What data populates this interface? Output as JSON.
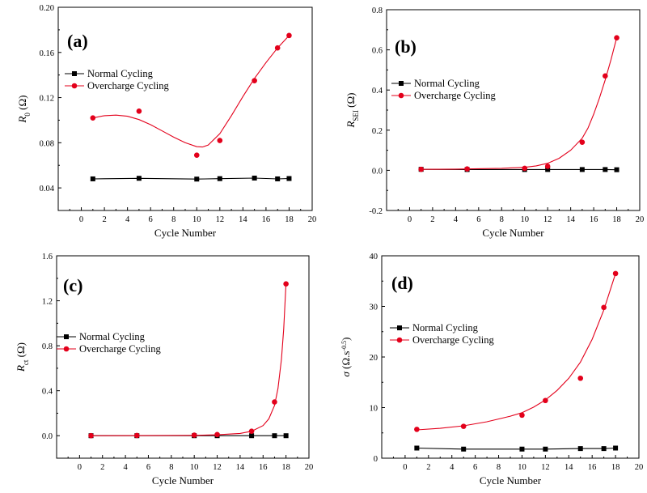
{
  "chart_data": [
    {
      "type": "scatter",
      "panel_label": "(a)",
      "ylabel_main": "R",
      "ylabel_sub": "0",
      "ylabel_unit": " (Ω)",
      "xlabel": "Cycle Number",
      "xlim": [
        -2,
        20
      ],
      "ylim": [
        0.02,
        0.2
      ],
      "xticks": [
        "0",
        "2",
        "4",
        "6",
        "8",
        "10",
        "12",
        "14",
        "16",
        "18",
        "20"
      ],
      "yticks": [
        "0.04",
        "0.08",
        "0.12",
        "0.16",
        "0.20"
      ],
      "legend_position": "upper-left",
      "series": [
        {
          "name": "Normal Cycling",
          "color": "#000000",
          "marker": "square",
          "x": [
            1,
            5,
            10,
            12,
            15,
            17,
            18
          ],
          "y": [
            0.048,
            0.0485,
            0.0478,
            0.0482,
            0.0487,
            0.048,
            0.0483
          ]
        },
        {
          "name": "Overcharge Cycling",
          "color": "#e3001b",
          "marker": "circle",
          "x": [
            1,
            5,
            10,
            12,
            15,
            17,
            18
          ],
          "y": [
            0.102,
            0.108,
            0.069,
            0.082,
            0.135,
            0.164,
            0.175
          ],
          "fit_x": [
            1,
            2,
            3,
            4,
            5,
            6,
            7,
            8,
            9,
            10,
            10.5,
            11,
            12,
            13,
            14,
            15,
            16,
            17,
            18
          ],
          "fit_y": [
            0.102,
            0.104,
            0.1045,
            0.1035,
            0.1005,
            0.096,
            0.0905,
            0.085,
            0.08,
            0.0765,
            0.0762,
            0.078,
            0.088,
            0.104,
            0.121,
            0.137,
            0.151,
            0.164,
            0.175
          ]
        }
      ]
    },
    {
      "type": "scatter",
      "panel_label": "(b)",
      "ylabel_main": "R",
      "ylabel_sub": "SEI",
      "ylabel_unit": " (Ω)",
      "xlabel": "Cycle Number",
      "xlim": [
        -2,
        20
      ],
      "ylim": [
        -0.2,
        0.8
      ],
      "xticks": [
        "0",
        "2",
        "4",
        "6",
        "8",
        "10",
        "12",
        "14",
        "16",
        "18",
        "20"
      ],
      "yticks": [
        "-0.2",
        "0.0",
        "0.2",
        "0.4",
        "0.6",
        "0.8"
      ],
      "legend_position": "upper-left",
      "series": [
        {
          "name": "Normal Cycling",
          "color": "#000000",
          "marker": "square",
          "x": [
            1,
            5,
            10,
            12,
            15,
            17,
            18
          ],
          "y": [
            0.005,
            0.004,
            0.004,
            0.004,
            0.004,
            0.004,
            0.003
          ]
        },
        {
          "name": "Overcharge Cycling",
          "color": "#e3001b",
          "marker": "circle",
          "x": [
            1,
            5,
            10,
            12,
            15,
            17,
            18
          ],
          "y": [
            0.005,
            0.007,
            0.01,
            0.02,
            0.14,
            0.47,
            0.66
          ],
          "fit_x": [
            1,
            4,
            6,
            8,
            10,
            11,
            12,
            13,
            14,
            15,
            15.5,
            16,
            16.5,
            17,
            17.5,
            18
          ],
          "fit_y": [
            0.005,
            0.006,
            0.008,
            0.01,
            0.015,
            0.022,
            0.035,
            0.06,
            0.1,
            0.16,
            0.21,
            0.28,
            0.36,
            0.45,
            0.55,
            0.66
          ]
        }
      ]
    },
    {
      "type": "scatter",
      "panel_label": "(c)",
      "ylabel_main": "R",
      "ylabel_sub": "ct",
      "ylabel_unit": " (Ω)",
      "xlabel": "Cycle Number",
      "xlim": [
        -2,
        20
      ],
      "ylim": [
        -0.2,
        1.6
      ],
      "xticks": [
        "0",
        "2",
        "4",
        "6",
        "8",
        "10",
        "12",
        "14",
        "16",
        "18",
        "20"
      ],
      "yticks": [
        "0.0",
        "0.4",
        "0.8",
        "1.2",
        "1.6"
      ],
      "legend_position": "upper-left",
      "series": [
        {
          "name": "Normal Cycling",
          "color": "#000000",
          "marker": "square",
          "x": [
            1,
            5,
            10,
            12,
            15,
            17,
            18
          ],
          "y": [
            0.0,
            0.0,
            0.0,
            0.0,
            0.0,
            0.0,
            0.0
          ]
        },
        {
          "name": "Overcharge Cycling",
          "color": "#e3001b",
          "marker": "circle",
          "x": [
            1,
            5,
            10,
            12,
            15,
            17,
            18
          ],
          "y": [
            0.0,
            0.002,
            0.005,
            0.01,
            0.04,
            0.3,
            1.35
          ],
          "fit_x": [
            1,
            5,
            10,
            12,
            14,
            15,
            16,
            16.5,
            17,
            17.3,
            17.6,
            17.8,
            18
          ],
          "fit_y": [
            0.0,
            0.001,
            0.003,
            0.008,
            0.02,
            0.04,
            0.09,
            0.15,
            0.27,
            0.42,
            0.68,
            0.95,
            1.35
          ]
        }
      ]
    },
    {
      "type": "scatter",
      "panel_label": "(d)",
      "ylabel_main": "σ",
      "ylabel_sub": "",
      "ylabel_unit": " (Ω.s",
      "ylabel_sup": "-0.5",
      "ylabel_close": ")",
      "xlabel": "Cycle Number",
      "xlim": [
        -2,
        20
      ],
      "ylim": [
        0,
        40
      ],
      "xticks": [
        "0",
        "2",
        "4",
        "6",
        "8",
        "10",
        "12",
        "14",
        "16",
        "18",
        "20"
      ],
      "yticks": [
        "0",
        "10",
        "20",
        "30",
        "40"
      ],
      "legend_position": "upper-left",
      "series": [
        {
          "name": "Normal Cycling",
          "color": "#000000",
          "marker": "square",
          "x": [
            1,
            5,
            10,
            12,
            15,
            17,
            18
          ],
          "y": [
            2.0,
            1.8,
            1.8,
            1.8,
            1.9,
            1.9,
            2.0
          ]
        },
        {
          "name": "Overcharge Cycling",
          "color": "#e3001b",
          "marker": "circle",
          "x": [
            1,
            5,
            10,
            12,
            15,
            17,
            18
          ],
          "y": [
            5.7,
            6.3,
            8.5,
            11.4,
            15.8,
            29.8,
            36.5
          ],
          "fit_x": [
            1,
            3,
            5,
            7,
            9,
            10,
            11,
            12,
            13,
            14,
            15,
            16,
            17,
            18
          ],
          "fit_y": [
            5.6,
            5.9,
            6.4,
            7.2,
            8.3,
            9.0,
            10.1,
            11.5,
            13.4,
            15.8,
            19.0,
            23.5,
            29.3,
            36.5
          ]
        }
      ]
    }
  ]
}
